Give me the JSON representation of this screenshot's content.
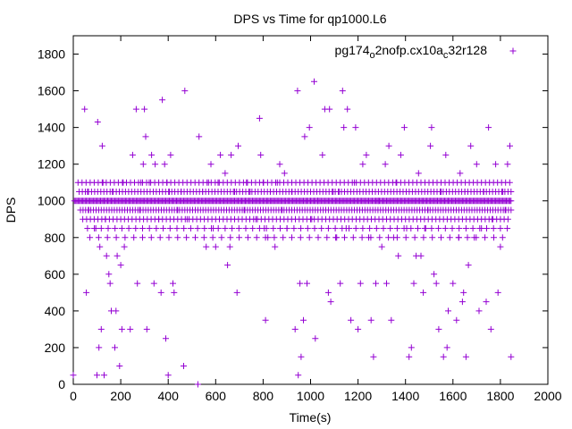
{
  "chart_data": {
    "type": "scatter",
    "title": "DPS vs Time for qp1000.L6",
    "xlabel": "Time(s)",
    "ylabel": "DPS",
    "xlim": [
      0,
      2000
    ],
    "ylim": [
      0,
      1900
    ],
    "xticks": [
      "0",
      "200",
      "400",
      "600",
      "800",
      "1000",
      "1200",
      "1400",
      "1600",
      "1800",
      "2000"
    ],
    "yticks": [
      "0",
      "200",
      "400",
      "600",
      "800",
      "1000",
      "1200",
      "1400",
      "1600",
      "1800"
    ],
    "legend": {
      "position": "top-right",
      "parts": [
        {
          "text": "pg174",
          "sub": false
        },
        {
          "text": "o",
          "sub": true
        },
        {
          "text": "2nofp.cx10a",
          "sub": false
        },
        {
          "text": "c",
          "sub": true
        },
        {
          "text": "32r128",
          "sub": false
        }
      ]
    },
    "marker_color": "#9400d3",
    "series": [
      {
        "name": "pg174o2nofp.cx10ac32r128",
        "baseline": {
          "y": 1000,
          "x_start": 5,
          "x_end": 1845,
          "x_step": 5
        },
        "points": [
          [
            0,
            50
          ],
          [
            48,
            1500
          ],
          [
            55,
            500
          ],
          [
            60,
            1050
          ],
          [
            65,
            950
          ],
          [
            95,
            850
          ],
          [
            100,
            50
          ],
          [
            103,
            1430
          ],
          [
            108,
            200
          ],
          [
            112,
            750
          ],
          [
            118,
            300
          ],
          [
            122,
            1300
          ],
          [
            125,
            1100
          ],
          [
            130,
            50
          ],
          [
            135,
            900
          ],
          [
            140,
            700
          ],
          [
            150,
            600
          ],
          [
            155,
            550
          ],
          [
            160,
            400
          ],
          [
            165,
            1050
          ],
          [
            175,
            200
          ],
          [
            180,
            400
          ],
          [
            185,
            700
          ],
          [
            195,
            100
          ],
          [
            200,
            650
          ],
          [
            205,
            300
          ],
          [
            210,
            1100
          ],
          [
            215,
            750
          ],
          [
            240,
            300
          ],
          [
            250,
            1250
          ],
          [
            265,
            1500
          ],
          [
            270,
            550
          ],
          [
            280,
            950
          ],
          [
            285,
            1100
          ],
          [
            295,
            1200
          ],
          [
            300,
            1500
          ],
          [
            305,
            1350
          ],
          [
            310,
            300
          ],
          [
            320,
            1100
          ],
          [
            330,
            1250
          ],
          [
            340,
            550
          ],
          [
            345,
            1200
          ],
          [
            360,
            900
          ],
          [
            370,
            500
          ],
          [
            375,
            1550
          ],
          [
            385,
            1200
          ],
          [
            390,
            250
          ],
          [
            395,
            1100
          ],
          [
            400,
            50
          ],
          [
            405,
            1050
          ],
          [
            410,
            1250
          ],
          [
            420,
            550
          ],
          [
            425,
            500
          ],
          [
            440,
            950
          ],
          [
            455,
            1050
          ],
          [
            465,
            100
          ],
          [
            470,
            1600
          ],
          [
            480,
            900
          ],
          [
            525,
            0
          ],
          [
            530,
            1350
          ],
          [
            545,
            1050
          ],
          [
            560,
            750
          ],
          [
            570,
            1100
          ],
          [
            580,
            1200
          ],
          [
            590,
            850
          ],
          [
            600,
            750
          ],
          [
            610,
            1100
          ],
          [
            620,
            1250
          ],
          [
            640,
            1150
          ],
          [
            650,
            650
          ],
          [
            660,
            750
          ],
          [
            665,
            1250
          ],
          [
            680,
            1050
          ],
          [
            690,
            500
          ],
          [
            695,
            1300
          ],
          [
            720,
            950
          ],
          [
            730,
            1100
          ],
          [
            745,
            1050
          ],
          [
            770,
            900
          ],
          [
            785,
            1450
          ],
          [
            790,
            1250
          ],
          [
            800,
            1100
          ],
          [
            805,
            850
          ],
          [
            810,
            350
          ],
          [
            820,
            800
          ],
          [
            830,
            1050
          ],
          [
            850,
            750
          ],
          [
            860,
            1100
          ],
          [
            870,
            1200
          ],
          [
            880,
            950
          ],
          [
            890,
            1150
          ],
          [
            900,
            850
          ],
          [
            920,
            1050
          ],
          [
            935,
            300
          ],
          [
            945,
            1600
          ],
          [
            948,
            50
          ],
          [
            955,
            550
          ],
          [
            960,
            150
          ],
          [
            970,
            350
          ],
          [
            975,
            1350
          ],
          [
            985,
            550
          ],
          [
            995,
            1400
          ],
          [
            1005,
            900
          ],
          [
            1015,
            1650
          ],
          [
            1020,
            250
          ],
          [
            1030,
            1000
          ],
          [
            1050,
            1250
          ],
          [
            1060,
            1500
          ],
          [
            1075,
            500
          ],
          [
            1080,
            1500
          ],
          [
            1085,
            450
          ],
          [
            1095,
            1050
          ],
          [
            1110,
            800
          ],
          [
            1120,
            1050
          ],
          [
            1125,
            550
          ],
          [
            1135,
            1600
          ],
          [
            1140,
            1400
          ],
          [
            1150,
            850
          ],
          [
            1155,
            1500
          ],
          [
            1170,
            350
          ],
          [
            1185,
            1100
          ],
          [
            1190,
            1400
          ],
          [
            1200,
            300
          ],
          [
            1210,
            550
          ],
          [
            1220,
            1200
          ],
          [
            1235,
            1250
          ],
          [
            1245,
            800
          ],
          [
            1255,
            350
          ],
          [
            1265,
            150
          ],
          [
            1275,
            550
          ],
          [
            1285,
            1000
          ],
          [
            1300,
            750
          ],
          [
            1315,
            1200
          ],
          [
            1320,
            550
          ],
          [
            1330,
            1300
          ],
          [
            1340,
            350
          ],
          [
            1350,
            800
          ],
          [
            1360,
            1100
          ],
          [
            1370,
            700
          ],
          [
            1380,
            1250
          ],
          [
            1395,
            1400
          ],
          [
            1405,
            850
          ],
          [
            1415,
            150
          ],
          [
            1425,
            200
          ],
          [
            1435,
            550
          ],
          [
            1445,
            700
          ],
          [
            1455,
            1150
          ],
          [
            1465,
            700
          ],
          [
            1475,
            500
          ],
          [
            1485,
            850
          ],
          [
            1495,
            950
          ],
          [
            1505,
            1300
          ],
          [
            1510,
            1400
          ],
          [
            1520,
            600
          ],
          [
            1530,
            550
          ],
          [
            1540,
            300
          ],
          [
            1550,
            1050
          ],
          [
            1560,
            150
          ],
          [
            1570,
            1250
          ],
          [
            1575,
            200
          ],
          [
            1580,
            400
          ],
          [
            1600,
            550
          ],
          [
            1615,
            350
          ],
          [
            1625,
            800
          ],
          [
            1630,
            1150
          ],
          [
            1640,
            450
          ],
          [
            1645,
            500
          ],
          [
            1650,
            1050
          ],
          [
            1655,
            150
          ],
          [
            1665,
            650
          ],
          [
            1675,
            1300
          ],
          [
            1690,
            800
          ],
          [
            1700,
            1200
          ],
          [
            1710,
            400
          ],
          [
            1720,
            850
          ],
          [
            1730,
            1050
          ],
          [
            1740,
            450
          ],
          [
            1750,
            1400
          ],
          [
            1760,
            300
          ],
          [
            1765,
            900
          ],
          [
            1780,
            1200
          ],
          [
            1790,
            500
          ],
          [
            1800,
            750
          ],
          [
            1810,
            1050
          ],
          [
            1820,
            950
          ],
          [
            1830,
            1200
          ],
          [
            1840,
            1300
          ],
          [
            1845,
            150
          ]
        ],
        "bands": [
          {
            "y": 1100,
            "x_start": 20,
            "x_end": 1845,
            "x_step": 17
          },
          {
            "y": 1050,
            "x_start": 25,
            "x_end": 1845,
            "x_step": 13
          },
          {
            "y": 950,
            "x_start": 30,
            "x_end": 1845,
            "x_step": 11
          },
          {
            "y": 900,
            "x_start": 40,
            "x_end": 1845,
            "x_step": 16
          },
          {
            "y": 850,
            "x_start": 60,
            "x_end": 1845,
            "x_step": 29
          },
          {
            "y": 800,
            "x_start": 70,
            "x_end": 1845,
            "x_step": 37
          }
        ]
      }
    ]
  }
}
